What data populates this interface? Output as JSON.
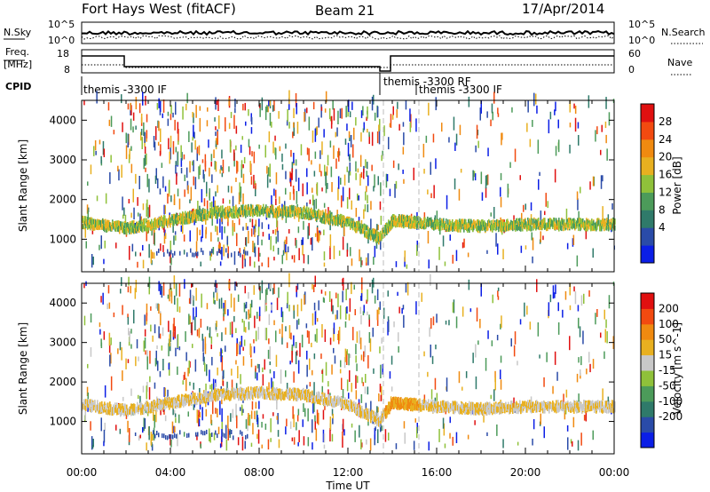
{
  "header": {
    "station": "Fort Hays West (fitACF)",
    "beam": "Beam 21",
    "date": "17/Apr/2014"
  },
  "noise_panel": {
    "left_label": "N.Sky",
    "right_label": "N.Search",
    "left_ticks": [
      "10^5",
      "10^0"
    ],
    "right_ticks": [
      "10^5",
      "10^0"
    ]
  },
  "freq_panel": {
    "left_label_1": "Freq.",
    "left_label_2": "[MHz]",
    "right_label": "Nave",
    "left_ticks": [
      "18",
      "8"
    ],
    "right_ticks": [
      "60",
      "0"
    ]
  },
  "cpid": {
    "label": "CPID",
    "segments": [
      {
        "text": "themis -3300 IF",
        "start_h": 0.0
      },
      {
        "text": "themis -3300 RF",
        "start_h": 13.6
      },
      {
        "text": "themis -3300 IF",
        "start_h": 15.2
      }
    ]
  },
  "colors": {
    "power_scale": [
      "#0b1ee6",
      "#2a4ba8",
      "#2f7a6a",
      "#4c9b5a",
      "#8fc13a",
      "#e8b020",
      "#f08a10",
      "#f24a10",
      "#e01010"
    ],
    "velocity_scale": [
      "#0b1ee6",
      "#2a4ba8",
      "#2f7a6a",
      "#4c9b5a",
      "#8fc13a",
      "#c8c8c8",
      "#e8b020",
      "#f08a10",
      "#f24a10",
      "#e01010"
    ]
  },
  "chart_data": {
    "type": "heatmap",
    "x_label": "Time UT",
    "x_ticks": [
      "00:00",
      "04:00",
      "08:00",
      "12:00",
      "16:00",
      "20:00",
      "00:00"
    ],
    "xlim_hours": [
      0,
      24
    ],
    "panels": [
      {
        "name": "power",
        "ylabel": "Slant Range [km]",
        "ylim": [
          180,
          4500
        ],
        "y_ticks": [
          1000,
          2000,
          3000,
          4000
        ],
        "colorbar_label": "Power [dB]",
        "colorbar_ticks": [
          28,
          24,
          20,
          16,
          12,
          8,
          4
        ]
      },
      {
        "name": "velocity",
        "ylabel": "Slant Range [km]",
        "ylim": [
          180,
          4500
        ],
        "y_ticks": [
          1000,
          2000,
          3000,
          4000
        ],
        "colorbar_label": "Velocity [m s^-1]",
        "colorbar_ticks": [
          200,
          100,
          50,
          15,
          -15,
          -50,
          -100,
          -200
        ]
      }
    ],
    "ground_scatter_band": {
      "description": "",
      "points": [
        [
          0.0,
          1400
        ],
        [
          2.0,
          1250
        ],
        [
          4.0,
          1450
        ],
        [
          6.0,
          1650
        ],
        [
          8.0,
          1700
        ],
        [
          10.0,
          1650
        ],
        [
          12.0,
          1400
        ],
        [
          13.4,
          1000
        ],
        [
          14.0,
          1450
        ],
        [
          16.0,
          1350
        ],
        [
          18.0,
          1300
        ],
        [
          20.0,
          1350
        ],
        [
          24.0,
          1350
        ]
      ]
    }
  }
}
